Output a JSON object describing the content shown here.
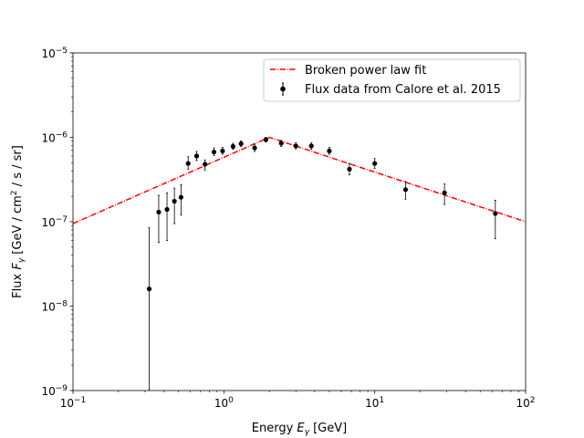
{
  "chart_data": {
    "type": "scatter",
    "xlabel": "Energy",
    "xlabel_symbol": "E",
    "xlabel_sub": "γ",
    "xlabel_unit": "[GeV]",
    "ylabel": "Flux",
    "ylabel_symbol": "F",
    "ylabel_sub": "γ",
    "ylabel_unit_pre": "[GeV / cm",
    "ylabel_unit_sup": "2",
    "ylabel_unit_post": " / s / sr]",
    "x_scale": "log",
    "y_scale": "log",
    "xlim": [
      0.1,
      100
    ],
    "ylim": [
      1e-09,
      1e-05
    ],
    "grid": false,
    "legend_position": "top-right",
    "x_ticks": [
      {
        "value": 0.1,
        "base": "10",
        "exp": "−1"
      },
      {
        "value": 1,
        "base": "10",
        "exp": "0"
      },
      {
        "value": 10,
        "base": "10",
        "exp": "1"
      },
      {
        "value": 100,
        "base": "10",
        "exp": "2"
      }
    ],
    "y_ticks": [
      {
        "value": 1e-09,
        "base": "10",
        "exp": "−9"
      },
      {
        "value": 1e-08,
        "base": "10",
        "exp": "−8"
      },
      {
        "value": 1e-07,
        "base": "10",
        "exp": "−7"
      },
      {
        "value": 1e-06,
        "base": "10",
        "exp": "−6"
      },
      {
        "value": 1e-05,
        "base": "10",
        "exp": "−5"
      }
    ],
    "series": [
      {
        "name": "Broken power law fit",
        "kind": "line",
        "style": "dashdot",
        "color": "#ff0000",
        "x": [
          0.1,
          2.0,
          100
        ],
        "y": [
          9.5e-08,
          1e-06,
          1e-07
        ]
      },
      {
        "name": "Flux data from Calore et al. 2015",
        "kind": "errorbar",
        "color": "#000000",
        "points": [
          {
            "x": 0.32,
            "y": 1.6e-08,
            "ylo": 1e-09,
            "yhi": 8.5e-08
          },
          {
            "x": 0.37,
            "y": 1.3e-07,
            "ylo": 5.7e-08,
            "yhi": 2.05e-07
          },
          {
            "x": 0.42,
            "y": 1.4e-07,
            "ylo": 6e-08,
            "yhi": 2.2e-07
          },
          {
            "x": 0.47,
            "y": 1.75e-07,
            "ylo": 9.5e-08,
            "yhi": 2.5e-07
          },
          {
            "x": 0.52,
            "y": 1.95e-07,
            "ylo": 1.2e-07,
            "yhi": 2.75e-07
          },
          {
            "x": 0.58,
            "y": 4.9e-07,
            "ylo": 4.2e-07,
            "yhi": 5.9e-07
          },
          {
            "x": 0.66,
            "y": 6e-07,
            "ylo": 5.3e-07,
            "yhi": 6.8e-07
          },
          {
            "x": 0.75,
            "y": 4.8e-07,
            "ylo": 4.1e-07,
            "yhi": 5.4e-07
          },
          {
            "x": 0.86,
            "y": 6.7e-07,
            "ylo": 6.1e-07,
            "yhi": 7.5e-07
          },
          {
            "x": 0.98,
            "y": 6.9e-07,
            "ylo": 6.3e-07,
            "yhi": 7.6e-07
          },
          {
            "x": 1.15,
            "y": 7.8e-07,
            "ylo": 7.2e-07,
            "yhi": 8.5e-07
          },
          {
            "x": 1.3,
            "y": 8.4e-07,
            "ylo": 7.8e-07,
            "yhi": 9.1e-07
          },
          {
            "x": 1.6,
            "y": 7.5e-07,
            "ylo": 6.8e-07,
            "yhi": 8.3e-07
          },
          {
            "x": 1.9,
            "y": 9.4e-07,
            "ylo": 8.8e-07,
            "yhi": 1e-06
          },
          {
            "x": 2.4,
            "y": 8.5e-07,
            "ylo": 7.8e-07,
            "yhi": 9.2e-07
          },
          {
            "x": 3.0,
            "y": 7.9e-07,
            "ylo": 7.3e-07,
            "yhi": 8.6e-07
          },
          {
            "x": 3.8,
            "y": 7.9e-07,
            "ylo": 7.2e-07,
            "yhi": 8.6e-07
          },
          {
            "x": 5.0,
            "y": 6.9e-07,
            "ylo": 6.3e-07,
            "yhi": 7.6e-07
          },
          {
            "x": 6.8,
            "y": 4.2e-07,
            "ylo": 3.6e-07,
            "yhi": 4.9e-07
          },
          {
            "x": 10.0,
            "y": 4.9e-07,
            "ylo": 4.3e-07,
            "yhi": 5.6e-07
          },
          {
            "x": 16.0,
            "y": 2.4e-07,
            "ylo": 1.85e-07,
            "yhi": 3e-07
          },
          {
            "x": 29.0,
            "y": 2.2e-07,
            "ylo": 1.6e-07,
            "yhi": 2.8e-07
          },
          {
            "x": 63.0,
            "y": 1.25e-07,
            "ylo": 6.3e-08,
            "yhi": 1.8e-07
          }
        ]
      }
    ]
  }
}
